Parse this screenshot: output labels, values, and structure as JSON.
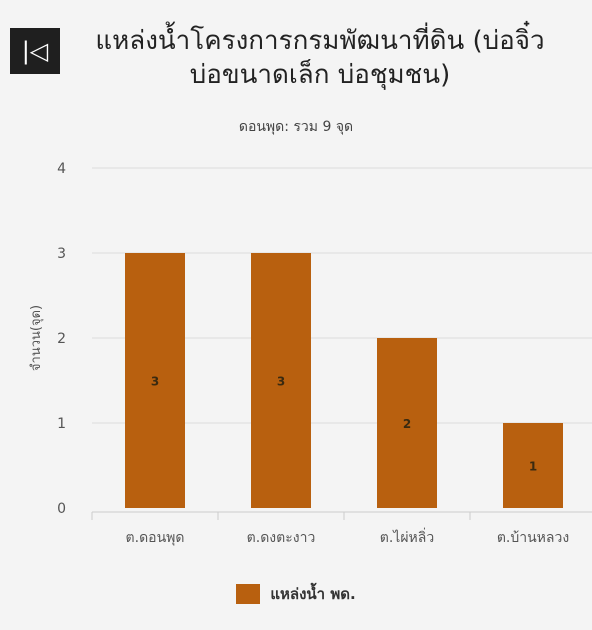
{
  "header": {
    "back_icon": "skip-back-icon",
    "back_glyph": "|◁",
    "title_line1": "แหล่งน้ำโครงการกรมพัฒนาที่ดิน (บ่อจิ๋ว",
    "title_line2": "บ่อขนาดเล็ก บ่อชุมชน)",
    "subtitle": "ดอนพุด: รวม 9 จุด"
  },
  "colors": {
    "bar": "#b8600f",
    "grid": "#dddddd",
    "axis_text": "#555555",
    "data_label": "#3a2a10"
  },
  "chart_data": {
    "type": "bar",
    "title": "แหล่งน้ำโครงการกรมพัฒนาที่ดิน (บ่อจิ๋ว บ่อขนาดเล็ก บ่อชุมชน)",
    "subtitle": "ดอนพุด: รวม 9 จุด",
    "ylabel": "จำนวน(จุด)",
    "xlabel": "",
    "categories": [
      "ต.ดอนพุด",
      "ต.ดงตะงาว",
      "ต.ไผ่หลิ่ว",
      "ต.บ้านหลวง"
    ],
    "series": [
      {
        "name": "แหล่งน้ำ พด.",
        "values": [
          3,
          3,
          2,
          1
        ]
      }
    ],
    "ylim": [
      0,
      4
    ],
    "yticks": [
      0,
      1,
      2,
      3,
      4
    ],
    "grid": true,
    "data_labels": true,
    "legend": "bottom-center"
  }
}
